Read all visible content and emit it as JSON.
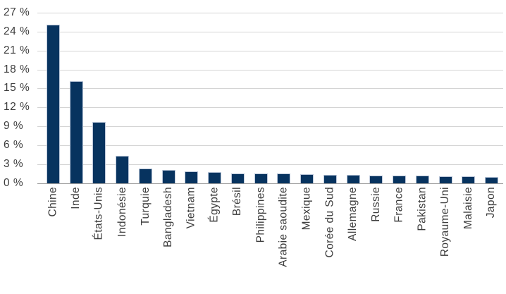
{
  "chart_data": {
    "type": "bar",
    "title": "",
    "xlabel": "",
    "ylabel": "",
    "categories": [
      "Chine",
      "Inde",
      "États-Unis",
      "Indonésie",
      "Turquie",
      "Bangladesh",
      "Vietnam",
      "Égypte",
      "Brésil",
      "Philippines",
      "Arabie saoudite",
      "Mexique",
      "Corée du Sud",
      "Allemagne",
      "Russie",
      "France",
      "Pakistan",
      "Royaume-Uni",
      "Malaisie",
      "Japon"
    ],
    "values": [
      25.0,
      16.1,
      9.6,
      4.2,
      2.2,
      2.0,
      1.8,
      1.7,
      1.5,
      1.5,
      1.4,
      1.3,
      1.2,
      1.2,
      1.1,
      1.1,
      1.1,
      1.0,
      1.0,
      0.9
    ],
    "ylim": [
      0,
      27
    ],
    "ytick_step": 3,
    "ytick_values": [
      0,
      3,
      6,
      9,
      12,
      15,
      18,
      21,
      24,
      27
    ],
    "ytick_labels": [
      "0 %",
      "3 %",
      "6 %",
      "9 %",
      "12 %",
      "15 %",
      "18 %",
      "21 %",
      "24 %",
      "27 %"
    ],
    "grid": "horizontal",
    "legend": "none",
    "x_labels_rotation_deg": -90,
    "colors": {
      "bar_fill": "#07335f",
      "bar_border": "#bcc8da",
      "gridline": "#d4d4d4",
      "axis_line": "#9e9e9e",
      "label_text": "#3d3d3d",
      "background": "#ffffff"
    }
  }
}
